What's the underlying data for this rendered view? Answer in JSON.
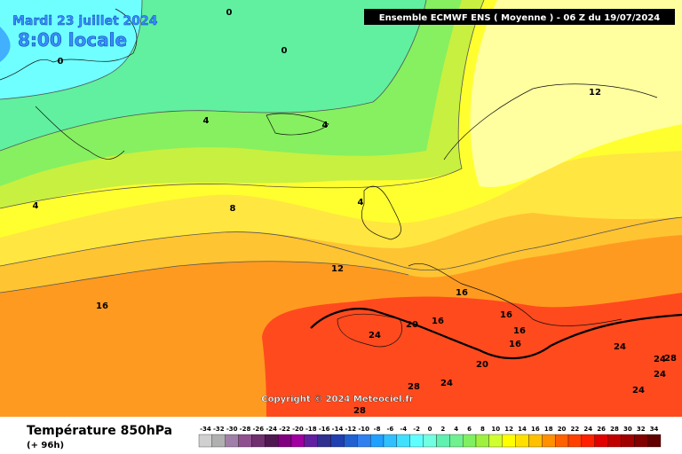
{
  "header": {
    "date": "Mardi 23 juillet 2024",
    "time": "8:00 locale",
    "run": "Ensemble ECMWF ENS  ( Moyenne )  -  06 Z du 19/07/2024"
  },
  "map": {
    "contour_labels": [
      0,
      0,
      0,
      4,
      4,
      4,
      4,
      8,
      12,
      12,
      16,
      16,
      16,
      16,
      16,
      16,
      20,
      20,
      24,
      24,
      24,
      24,
      24,
      24,
      28,
      28,
      28
    ],
    "copyright": "Copyright © 2024 Meteociel.fr"
  },
  "footer": {
    "title": "Température 850hPa",
    "lead": "(+ 96h)"
  },
  "scale": {
    "labels": [
      -34,
      -32,
      -30,
      -28,
      -26,
      -24,
      -22,
      -20,
      -18,
      -16,
      -14,
      -12,
      -10,
      -8,
      -6,
      -4,
      -2,
      0,
      2,
      4,
      6,
      8,
      10,
      12,
      14,
      16,
      18,
      20,
      22,
      24,
      26,
      28,
      30,
      32,
      34
    ]
  }
}
